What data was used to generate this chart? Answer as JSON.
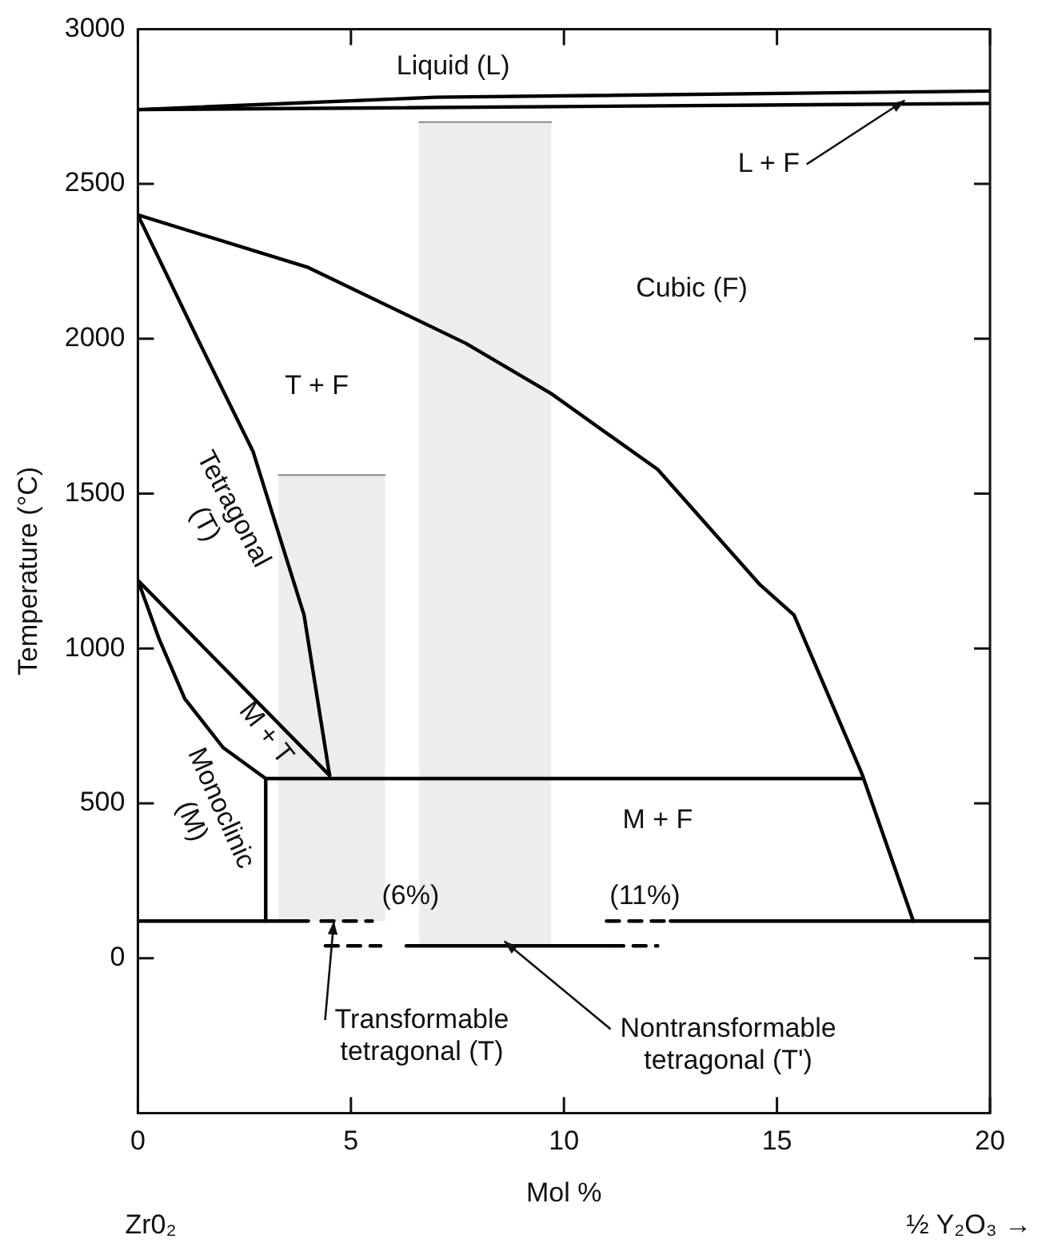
{
  "chart_data": {
    "type": "line",
    "xlabel": "Mol %",
    "ylabel": "Temperature (°C)",
    "xlim": [
      0,
      20
    ],
    "xticks": [
      0,
      5,
      10,
      15,
      20
    ],
    "ylim": [
      -500,
      3000
    ],
    "yticks": [
      0,
      500,
      1000,
      1500,
      2000,
      2500,
      3000
    ],
    "grid": false,
    "legend": false,
    "marker": "none",
    "line_style": "solid",
    "series": [
      {
        "color": "#000000",
        "x": [
          0,
          7,
          20
        ],
        "values": [
          2740,
          2780,
          2800
        ]
      },
      {
        "color": "#000000",
        "x": [
          0,
          20
        ],
        "values": [
          2740,
          2760
        ]
      },
      {
        "color": "#000000",
        "x": [
          0,
          4,
          7.7,
          9.7,
          12.2,
          14.6,
          15.4,
          17,
          18.2
        ],
        "values": [
          2400,
          2230,
          1985,
          1823,
          1578,
          1206,
          1108,
          593,
          120
        ]
      },
      {
        "color": "#000000",
        "x": [
          0,
          1.4,
          2.7,
          3.9,
          4.5
        ],
        "values": [
          2400,
          2000,
          1637,
          1108,
          590
        ]
      },
      {
        "color": "#000000",
        "x": [
          0,
          4.5
        ],
        "values": [
          1220,
          590
        ]
      },
      {
        "color": "#000000",
        "x": [
          0,
          0.5,
          1.1,
          2,
          3
        ],
        "values": [
          1220,
          1030,
          838,
          680,
          580
        ]
      },
      {
        "color": "#000000",
        "x": [
          3,
          17
        ],
        "values": [
          580,
          580
        ]
      },
      {
        "color": "#000000",
        "x": [
          3,
          3
        ],
        "values": [
          580,
          120
        ]
      },
      {
        "color": "#000000",
        "x": [
          0,
          4
        ],
        "values": [
          120,
          120
        ]
      },
      {
        "color": "#000000",
        "x": [
          4.3,
          5.5
        ],
        "values": [
          120,
          120
        ],
        "line_style": "dashed"
      },
      {
        "color": "#000000",
        "x": [
          11,
          12.5
        ],
        "values": [
          120,
          120
        ],
        "line_style": "dashed"
      },
      {
        "color": "#000000",
        "x": [
          12.5,
          20
        ],
        "values": [
          120,
          120
        ]
      },
      {
        "color": "#000000",
        "x": [
          4.4,
          5.7
        ],
        "values": [
          40,
          40
        ],
        "line_style": "dashed"
      },
      {
        "color": "#000000",
        "x": [
          6.3,
          11.1
        ],
        "values": [
          40,
          40
        ]
      },
      {
        "color": "#000000",
        "x": [
          11.1,
          12.2
        ],
        "values": [
          40,
          40
        ],
        "line_style": "dashed"
      },
      {
        "color": "#888888",
        "x": [
          3.3,
          5.8
        ],
        "values": [
          1560,
          1560
        ],
        "lower": [
          120,
          120
        ],
        "upper": [
          1560,
          1560
        ]
      },
      {
        "color": "#888888",
        "x": [
          6.6,
          9.7
        ],
        "values": [
          2700,
          2700
        ],
        "lower": [
          40,
          40
        ],
        "upper": [
          2700,
          2700
        ]
      }
    ],
    "annotations": [
      "Liquid (L)",
      {
        "text": "L + F",
        "x": 18,
        "y": 2770
      },
      "Cubic (F)",
      "T + F",
      "Tetragonal\n(T)",
      "M + T",
      "Monoclinic\n(M)",
      "M + F",
      "(6%)",
      "(11%)",
      {
        "text": "Transformable\ntetragonal (T)",
        "x": 4.6,
        "y": 120
      },
      {
        "text": "Nontransformable\ntetragonal (T')",
        "x": 8.6,
        "y": 55
      },
      "Zr0₂",
      "½ Y₂O₃ →"
    ]
  }
}
